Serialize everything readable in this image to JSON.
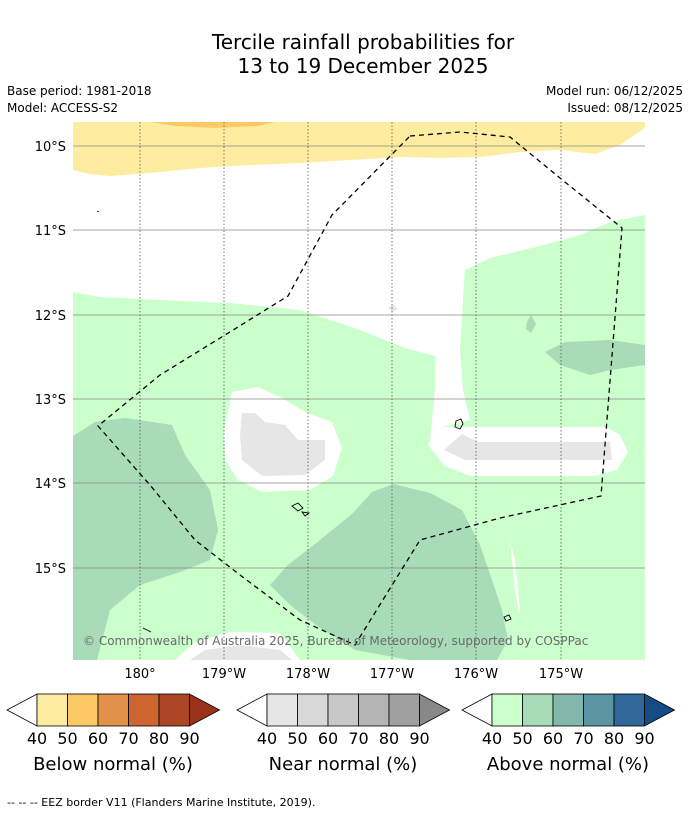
{
  "title_line1": "Tercile rainfall probabilities for",
  "title_line2": "13 to 19 December 2025",
  "base_period": "Base period: 1981-2018",
  "model": "Model: ACCESS-S2",
  "model_run": "Model run: 06/12/2025",
  "issued": "Issued: 08/12/2025",
  "lat_labels": [
    "10°S",
    "11°S",
    "12°S",
    "13°S",
    "14°S",
    "15°S"
  ],
  "lon_labels": [
    "180°",
    "179°W",
    "178°W",
    "177°W",
    "176°W",
    "175°W"
  ],
  "copyright": "© Commonwealth of Australia 2025, Bureau of Meteorology, supported by COSPPac",
  "legends": [
    {
      "label": "Below normal (%)",
      "ticks": [
        "40",
        "50",
        "60",
        "70",
        "80",
        "90"
      ],
      "colors": [
        "#ffffff",
        "#feeda0",
        "#fdc966",
        "#e29148",
        "#cd6531",
        "#ac4525",
        "#9a3219"
      ]
    },
    {
      "label": "Near normal (%)",
      "ticks": [
        "40",
        "50",
        "60",
        "70",
        "80",
        "90"
      ],
      "colors": [
        "#ffffff",
        "#e6e6e6",
        "#d8d8d8",
        "#c8c8c8",
        "#b4b4b4",
        "#a0a0a0",
        "#888888"
      ]
    },
    {
      "label": "Above normal (%)",
      "ticks": [
        "40",
        "50",
        "60",
        "70",
        "80",
        "90"
      ],
      "colors": [
        "#ffffff",
        "#cbffcc",
        "#a8dbb8",
        "#82b8ac",
        "#5b95a4",
        "#306899",
        "#174b85"
      ]
    }
  ],
  "footnote": "--  --  -- EEZ border V11 (Flanders Marine Institute, 2019).",
  "colors": {
    "frame": "#000000",
    "grid": "#888888"
  }
}
